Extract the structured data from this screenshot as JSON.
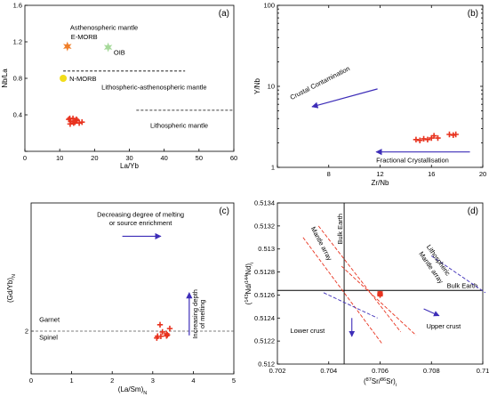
{
  "colors": {
    "red": "#e8321e",
    "orange": "#f07f2a",
    "green": "#a6d99a",
    "yellow": "#f2dd1a",
    "blue": "#3d2db8",
    "black": "#000000"
  },
  "chart_data": [
    {
      "panel": "a",
      "type": "scatter",
      "panel_label": "(a)",
      "xlabel": "La/Yb",
      "ylabel": "Nb/La",
      "xlim": [
        0,
        60
      ],
      "ylim": [
        0,
        1.6
      ],
      "xticks": [
        0,
        10,
        20,
        30,
        40,
        50,
        60
      ],
      "yticks": [
        0,
        0.4,
        0.8,
        1.2,
        1.6
      ],
      "xtick_labels": [
        "0",
        "10",
        "20",
        "30",
        "40",
        "50",
        "60"
      ],
      "ytick_labels": [
        "",
        "0.4",
        "0.8",
        "1.2",
        "1.6"
      ],
      "series": [
        {
          "marker": "plus",
          "color": "#e8321e",
          "points": [
            [
              12.6,
              0.35
            ],
            [
              13.2,
              0.33
            ],
            [
              13.8,
              0.36
            ],
            [
              14.4,
              0.32
            ],
            [
              15.0,
              0.34
            ],
            [
              13.0,
              0.3
            ],
            [
              14.0,
              0.31
            ],
            [
              15.6,
              0.31
            ],
            [
              16.4,
              0.32
            ],
            [
              12.9,
              0.36
            ],
            [
              14.8,
              0.35
            ]
          ]
        }
      ],
      "references": [
        {
          "name": "E-MORB",
          "x": 12.2,
          "y": 1.15,
          "marker": "star",
          "color": "#f07f2a"
        },
        {
          "name": "OIB",
          "x": 23.9,
          "y": 1.14,
          "marker": "star",
          "color": "#a6d99a"
        },
        {
          "name": "N-MORB",
          "x": 11.0,
          "y": 0.8,
          "marker": "circle",
          "color": "#f2dd1a"
        }
      ],
      "lines": [
        {
          "style": "dashed",
          "points": [
            [
              11,
              0.88
            ],
            [
              46,
              0.88
            ]
          ]
        },
        {
          "style": "dashed",
          "points": [
            [
              32,
              0.45
            ],
            [
              60,
              0.45
            ]
          ]
        }
      ],
      "annotations": [
        {
          "text": "Asthenospheric mantle",
          "x": 13,
          "y": 1.33
        },
        {
          "text": "Lithospheric-asthenospheric mantle",
          "x": 22,
          "y": 0.68
        },
        {
          "text": "Lithospheric mantle",
          "x": 36,
          "y": 0.26
        }
      ]
    },
    {
      "panel": "b",
      "type": "scatter",
      "panel_label": "(b)",
      "xlabel": "Zr/Nb",
      "ylabel": "Y/Nb",
      "xlim": [
        4,
        20
      ],
      "ylim": [
        1,
        100
      ],
      "yscale": "log",
      "xticks": [
        4,
        8,
        12,
        16,
        20
      ],
      "yticks": [
        1,
        10,
        100
      ],
      "xtick_labels": [
        "",
        "8",
        "12",
        "16",
        "20"
      ],
      "ytick_labels": [
        "1",
        "10",
        "100"
      ],
      "series": [
        {
          "marker": "plus",
          "color": "#e8321e",
          "points": [
            [
              14.8,
              2.2
            ],
            [
              15.1,
              2.15
            ],
            [
              15.4,
              2.25
            ],
            [
              15.7,
              2.2
            ],
            [
              16.0,
              2.3
            ],
            [
              16.2,
              2.45
            ],
            [
              16.5,
              2.3
            ],
            [
              17.4,
              2.55
            ],
            [
              17.7,
              2.5
            ],
            [
              17.9,
              2.55
            ]
          ]
        }
      ],
      "arrows": [
        {
          "text": "Crustal Contamination",
          "color": "#3d2db8",
          "from": [
            11.8,
            9.3
          ],
          "to": [
            6.7,
            5.6
          ],
          "text_at": [
            5.1,
            6.8
          ],
          "rotate": -27
        },
        {
          "text": "Fractional Crystallisation",
          "color": "#3d2db8",
          "from": [
            19.0,
            1.55
          ],
          "to": [
            11.7,
            1.55
          ],
          "text_at": [
            11.7,
            1.15
          ],
          "rotate": 0
        }
      ]
    },
    {
      "panel": "c",
      "type": "scatter",
      "panel_label": "(c)",
      "xlabel": "(La/Sm)N",
      "ylabel": "(Gd/Yb)N",
      "xlim": [
        0,
        5
      ],
      "ylim": [
        1,
        5
      ],
      "xticks": [
        0,
        1,
        2,
        3,
        4,
        5
      ],
      "yticks": [
        2
      ],
      "xtick_labels": [
        "0",
        "1",
        "2",
        "3",
        "4",
        "5"
      ],
      "ytick_labels": [
        "2"
      ],
      "series": [
        {
          "marker": "plus",
          "color": "#e8321e",
          "points": [
            [
              3.18,
              2.15
            ],
            [
              3.24,
              1.98
            ],
            [
              3.34,
              1.94
            ],
            [
              3.42,
              2.06
            ],
            [
              3.36,
              1.91
            ],
            [
              3.12,
              1.88
            ],
            [
              3.2,
              1.88
            ],
            [
              3.34,
              1.89
            ],
            [
              3.1,
              1.84
            ]
          ]
        }
      ],
      "lines": [
        {
          "style": "dashed",
          "points": [
            [
              0,
              2.0
            ],
            [
              5,
              2.0
            ]
          ]
        }
      ],
      "annotations": [
        {
          "text": "Garnet",
          "x": 0.2,
          "y": 2.22
        },
        {
          "text": "Spinel",
          "x": 0.2,
          "y": 1.8
        }
      ],
      "arrows": [
        {
          "text": "Decreasing degree of melting",
          "text2": "or source enrichment",
          "color": "#3d2db8",
          "from": [
            2.25,
            4.22
          ],
          "to": [
            3.2,
            4.22
          ]
        },
        {
          "text": "Increasing depth",
          "text2": "of melting",
          "color": "#3d2db8",
          "from": [
            3.9,
            1.9
          ],
          "to": [
            3.9,
            2.9
          ],
          "vertical_text": true
        }
      ]
    },
    {
      "panel": "d",
      "type": "scatter",
      "panel_label": "(d)",
      "xlabel": "(87Sr/86Sr)i",
      "ylabel": "(143Nd/144Nd)i",
      "xlim": [
        0.702,
        0.71
      ],
      "ylim": [
        0.512,
        0.5134
      ],
      "xticks": [
        0.702,
        0.704,
        0.706,
        0.708,
        0.71
      ],
      "yticks": [
        0.512,
        0.5122,
        0.5124,
        0.5126,
        0.5128,
        0.513,
        0.5132,
        0.5134
      ],
      "xtick_labels": [
        "0.702",
        "0.704",
        "0.706",
        "0.708",
        "0.71"
      ],
      "ytick_labels": [
        "0.512",
        "0.5122",
        "0.5124",
        "0.5126",
        "0.5128",
        "0.513",
        "0.5132",
        "0.5134"
      ],
      "series": [
        {
          "marker": "plus",
          "color": "#e8321e",
          "points": [
            [
              0.706,
              0.51261
            ],
            [
              0.706,
              0.5126
            ]
          ]
        }
      ],
      "bulk_earth": {
        "x": 0.7046,
        "y": 0.51264,
        "label_v": "Bulk Earth",
        "label_h": "Bulk Earth"
      },
      "lines": [
        {
          "style": "dashed",
          "color": "#e8321e",
          "points": [
            [
              0.703,
              0.5131
            ],
            [
              0.7061,
              0.51217
            ]
          ]
        },
        {
          "style": "dashed",
          "color": "#e8321e",
          "points": [
            [
              0.7036,
              0.5132
            ],
            [
              0.7068,
              0.51228
            ]
          ]
        },
        {
          "style": "dashed",
          "color": "#e8321e",
          "points": [
            [
              0.7045,
              0.51285
            ],
            [
              0.7074,
              0.51225
            ]
          ]
        },
        {
          "style": "dashed",
          "color": "#3d2db8",
          "points": [
            [
              0.7038,
              0.51262
            ],
            [
              0.7059,
              0.5124
            ]
          ]
        },
        {
          "style": "dashed",
          "color": "#3d2db8",
          "points": [
            [
              0.708,
              0.51294
            ],
            [
              0.7101,
              0.51262
            ]
          ]
        }
      ],
      "annotations": [
        {
          "text": "Mantle array",
          "x": 0.7033,
          "y": 0.51318,
          "color": "#e8321e",
          "rotate": 62
        },
        {
          "text": "Lithospheric",
          "x": 0.7078,
          "y": 0.51302,
          "color": "#e8321e",
          "rotate": 55
        },
        {
          "text": "Mantle array",
          "x": 0.7075,
          "y": 0.51296,
          "color": "#e8321e",
          "rotate": 55
        },
        {
          "text": "Lower crust",
          "x": 0.7025,
          "y": 0.51227,
          "color": "#3d2db8"
        },
        {
          "text": "Upper crust",
          "x": 0.7078,
          "y": 0.51231,
          "color": "#3d2db8"
        }
      ],
      "arrows": [
        {
          "color": "#3d2db8",
          "from": [
            0.7049,
            0.5124
          ],
          "to": [
            0.7049,
            0.51224
          ]
        },
        {
          "color": "#3d2db8",
          "from": [
            0.7077,
            0.51248
          ],
          "to": [
            0.7083,
            0.51242
          ]
        }
      ]
    }
  ]
}
